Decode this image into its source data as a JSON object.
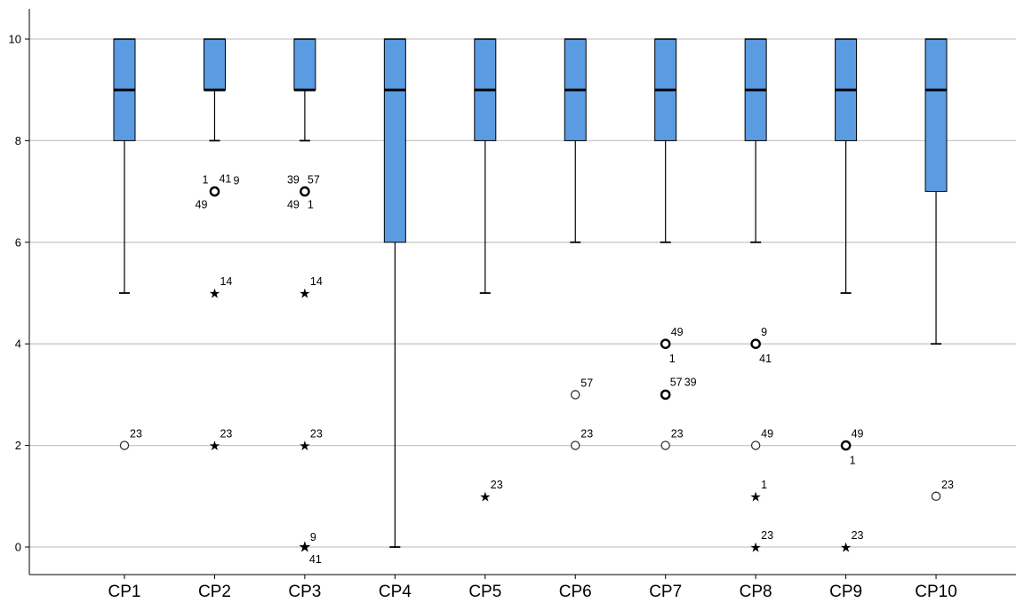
{
  "chart_data": {
    "type": "boxplot",
    "title": "",
    "xlabel": "",
    "ylabel": "",
    "ylim": [
      0,
      10
    ],
    "y_ticks": [
      "0",
      "2",
      "4",
      "6",
      "8",
      "10"
    ],
    "grid": true,
    "colors": {
      "box_fill": "#5B9BE1",
      "box_stroke": "#000000",
      "gridline": "#C8C8C8",
      "axis": "#000000"
    },
    "categories": [
      "CP1",
      "CP2",
      "CP3",
      "CP4",
      "CP5",
      "CP6",
      "CP7",
      "CP8",
      "CP9",
      "CP10"
    ],
    "boxes": [
      {
        "category": "CP1",
        "whisker_low": 5,
        "q1": 8,
        "median": 9,
        "q3": 10,
        "whisker_high": 10,
        "outliers": [
          {
            "y": 2,
            "marker": "circle",
            "bold": false,
            "labels": [
              "23"
            ]
          }
        ]
      },
      {
        "category": "CP2",
        "whisker_low": 8,
        "q1": 9,
        "median": 9,
        "q3": 10,
        "whisker_high": 10,
        "outliers": [
          {
            "y": 7,
            "marker": "circle",
            "bold": true,
            "labels": [
              "1",
              "41",
              "9",
              "49"
            ]
          },
          {
            "y": 5,
            "marker": "star",
            "bold": false,
            "labels": [
              "14"
            ]
          },
          {
            "y": 2,
            "marker": "star",
            "bold": false,
            "labels": [
              "23"
            ]
          }
        ]
      },
      {
        "category": "CP3",
        "whisker_low": 8,
        "q1": 9,
        "median": 9,
        "q3": 10,
        "whisker_high": 10,
        "outliers": [
          {
            "y": 7,
            "marker": "circle",
            "bold": true,
            "labels": [
              "39",
              "57",
              "49",
              "1"
            ]
          },
          {
            "y": 5,
            "marker": "star",
            "bold": false,
            "labels": [
              "14"
            ]
          },
          {
            "y": 2,
            "marker": "star",
            "bold": false,
            "labels": [
              "23"
            ]
          },
          {
            "y": 0,
            "marker": "star",
            "bold": true,
            "labels": [
              "9",
              "41"
            ]
          }
        ]
      },
      {
        "category": "CP4",
        "whisker_low": 0,
        "q1": 6,
        "median": 9,
        "q3": 10,
        "whisker_high": 10,
        "outliers": []
      },
      {
        "category": "CP5",
        "whisker_low": 5,
        "q1": 8,
        "median": 9,
        "q3": 10,
        "whisker_high": 10,
        "outliers": [
          {
            "y": 1,
            "marker": "star",
            "bold": false,
            "labels": [
              "23"
            ]
          }
        ]
      },
      {
        "category": "CP6",
        "whisker_low": 6,
        "q1": 8,
        "median": 9,
        "q3": 10,
        "whisker_high": 10,
        "outliers": [
          {
            "y": 3,
            "marker": "circle",
            "bold": false,
            "labels": [
              "57"
            ]
          },
          {
            "y": 2,
            "marker": "circle",
            "bold": false,
            "labels": [
              "23"
            ]
          }
        ]
      },
      {
        "category": "CP7",
        "whisker_low": 6,
        "q1": 8,
        "median": 9,
        "q3": 10,
        "whisker_high": 10,
        "outliers": [
          {
            "y": 4,
            "marker": "circle",
            "bold": true,
            "labels": [
              "49",
              "1"
            ]
          },
          {
            "y": 3,
            "marker": "circle",
            "bold": true,
            "labels": [
              "57",
              "39"
            ]
          },
          {
            "y": 2,
            "marker": "circle",
            "bold": false,
            "labels": [
              "23"
            ]
          }
        ]
      },
      {
        "category": "CP8",
        "whisker_low": 6,
        "q1": 8,
        "median": 9,
        "q3": 10,
        "whisker_high": 10,
        "outliers": [
          {
            "y": 4,
            "marker": "circle",
            "bold": true,
            "labels": [
              "9",
              "41"
            ]
          },
          {
            "y": 2,
            "marker": "circle",
            "bold": false,
            "labels": [
              "49"
            ]
          },
          {
            "y": 1,
            "marker": "star",
            "bold": false,
            "labels": [
              "1"
            ]
          },
          {
            "y": 0,
            "marker": "star",
            "bold": false,
            "labels": [
              "23"
            ]
          }
        ]
      },
      {
        "category": "CP9",
        "whisker_low": 5,
        "q1": 8,
        "median": 9,
        "q3": 10,
        "whisker_high": 10,
        "outliers": [
          {
            "y": 2,
            "marker": "circle",
            "bold": true,
            "labels": [
              "49",
              "1"
            ]
          },
          {
            "y": 0,
            "marker": "star",
            "bold": false,
            "labels": [
              "23"
            ]
          }
        ]
      },
      {
        "category": "CP10",
        "whisker_low": 4,
        "q1": 7,
        "median": 9,
        "q3": 10,
        "whisker_high": 10,
        "outliers": [
          {
            "y": 1,
            "marker": "circle",
            "bold": false,
            "labels": [
              "23"
            ]
          }
        ]
      }
    ]
  }
}
